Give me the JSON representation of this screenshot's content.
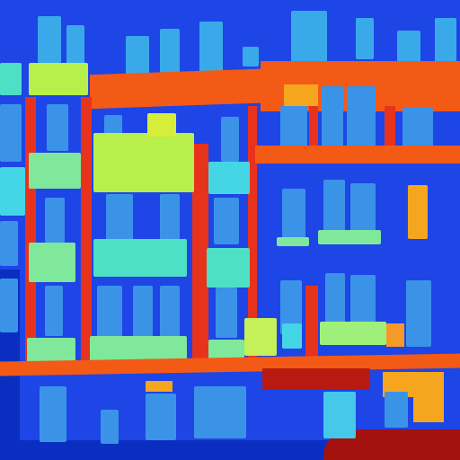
{
  "palette": {
    "background": "#1e45e6",
    "dark_blue": "#0a2fc0",
    "window_blue": "#3b93e8",
    "light_blue": "#3aa9ea",
    "cyan": "#45d6e6",
    "teal": "#4ee0c4",
    "yellow_green": "#b8ef4a",
    "lime": "#9ff07a",
    "orange": "#f35a16",
    "red_orange": "#e8331c",
    "amber": "#f6a51e",
    "dark_red": "#a3120f",
    "red": "#d42a1a"
  },
  "segmentation": {
    "description_visible": false
  }
}
